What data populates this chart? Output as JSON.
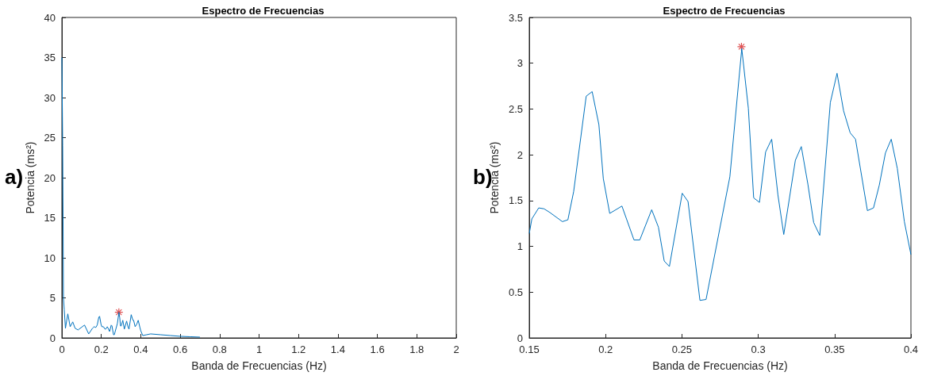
{
  "chart_data": [
    {
      "type": "line",
      "title": "Espectro de Frecuencias",
      "xlabel": "Banda de Frecuencias (Hz)",
      "ylabel": "Potencia (ms²)",
      "annotations": [
        "a)"
      ],
      "xlim": [
        0,
        2
      ],
      "xticks": [
        0,
        0.2,
        0.4,
        0.6,
        0.8,
        1,
        1.2,
        1.4,
        1.6,
        1.8,
        2
      ],
      "ylim": [
        0,
        40
      ],
      "yticks": [
        0,
        5,
        10,
        15,
        20,
        25,
        30,
        35,
        40
      ],
      "grid": false,
      "series": [
        {
          "color": "#0072bd",
          "marker": "none",
          "x": [
            0,
            0.004,
            0.008,
            0.012,
            0.018,
            0.03,
            0.042,
            0.055,
            0.067,
            0.082,
            0.109,
            0.115,
            0.136,
            0.155,
            0.1635,
            0.1717,
            0.1791,
            0.1873,
            0.1912,
            0.1985,
            0.2027,
            0.2107,
            0.2186,
            0.2224,
            0.2302,
            0.2346,
            0.2418,
            0.2502,
            0.254,
            0.2618,
            0.2658,
            0.2814,
            0.2892,
            0.2935,
            0.297,
            0.3008,
            0.3088,
            0.3167,
            0.3282,
            0.3363,
            0.3403,
            0.3516,
            0.3602,
            0.3637,
            0.3715,
            0.3793,
            0.3871,
            0.3957,
            0.4,
            0.41,
            0.43,
            0.45,
            0.5,
            0.55,
            0.6,
            0.65,
            0.7
          ],
          "values": [
            35,
            24,
            5,
            3.5,
            1.2,
            3,
            1.4,
            2,
            1.2,
            1,
            1.5,
            1.6,
            0.5,
            1.2,
            1.4,
            1.3,
            1.6,
            2.6,
            2.7,
            1.7,
            1.4,
            1.4,
            1.1,
            1.1,
            1.4,
            1.2,
            0.8,
            1.6,
            1.5,
            0.4,
            0.4,
            1.8,
            3.2,
            2.5,
            1.5,
            1.5,
            2.2,
            1.1,
            2.1,
            1.3,
            1.1,
            2.9,
            2.2,
            2.2,
            1.4,
            1.7,
            2.2,
            1.3,
            0.9,
            0.3,
            0.4,
            0.5,
            0.4,
            0.3,
            0.2,
            0.15,
            0.1
          ]
        },
        {
          "type": "scatter",
          "color": "#d62728",
          "marker": "cross",
          "x": [
            0.289
          ],
          "values": [
            3.2
          ]
        }
      ]
    },
    {
      "type": "line",
      "title": "Espectro de Frecuencias",
      "xlabel": "Banda de Frecuencias (Hz)",
      "ylabel": "Potencia (ms²)",
      "annotations": [
        "b)"
      ],
      "xlim": [
        0.15,
        0.4
      ],
      "xticks": [
        0.15,
        0.2,
        0.25,
        0.3,
        0.35,
        0.4
      ],
      "ylim": [
        0,
        3.5
      ],
      "yticks": [
        0,
        0.5,
        1,
        1.5,
        2,
        2.5,
        3,
        3.5
      ],
      "grid": false,
      "series": [
        {
          "color": "#0072bd",
          "marker": "none",
          "x": [
            0.15,
            0.1517,
            0.1562,
            0.1597,
            0.1635,
            0.1717,
            0.1753,
            0.1791,
            0.1873,
            0.1912,
            0.1956,
            0.1985,
            0.2027,
            0.2107,
            0.2186,
            0.2224,
            0.2302,
            0.2346,
            0.2384,
            0.2418,
            0.2502,
            0.254,
            0.2618,
            0.2658,
            0.2814,
            0.2892,
            0.2935,
            0.297,
            0.3008,
            0.3048,
            0.3088,
            0.3129,
            0.3167,
            0.3243,
            0.3282,
            0.3325,
            0.3363,
            0.3403,
            0.3472,
            0.3516,
            0.3559,
            0.3602,
            0.3637,
            0.3715,
            0.3755,
            0.3793,
            0.3833,
            0.3871,
            0.3911,
            0.3957,
            0.4
          ],
          "values": [
            1.14,
            1.3,
            1.42,
            1.41,
            1.37,
            1.27,
            1.29,
            1.6,
            2.64,
            2.69,
            2.33,
            1.74,
            1.36,
            1.44,
            1.07,
            1.07,
            1.4,
            1.21,
            0.84,
            0.78,
            1.58,
            1.49,
            0.41,
            0.42,
            1.76,
            3.16,
            2.51,
            1.53,
            1.48,
            2.03,
            2.17,
            1.56,
            1.13,
            1.94,
            2.09,
            1.68,
            1.26,
            1.12,
            2.57,
            2.89,
            2.48,
            2.24,
            2.17,
            1.39,
            1.42,
            1.67,
            2.02,
            2.17,
            1.85,
            1.27,
            0.91
          ]
        },
        {
          "type": "scatter",
          "color": "#d62728",
          "marker": "cross",
          "x": [
            0.289
          ],
          "values": [
            3.18
          ]
        }
      ]
    }
  ]
}
